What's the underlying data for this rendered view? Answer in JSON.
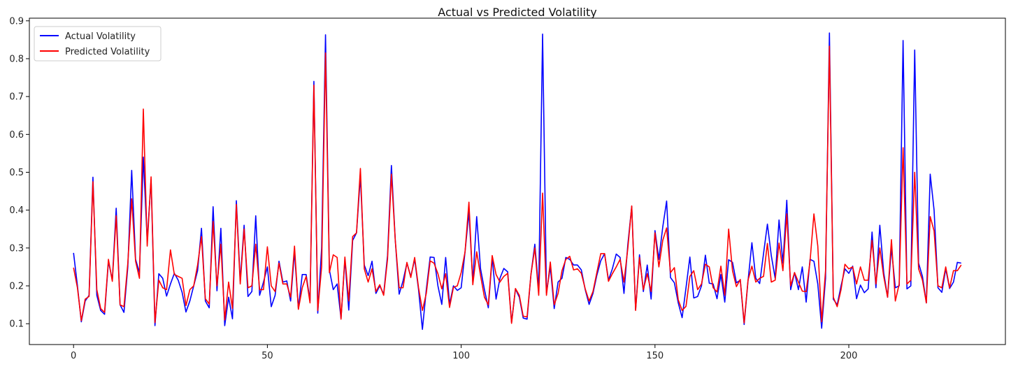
{
  "chart_data": {
    "type": "line",
    "title": "Actual vs Predicted Volatility",
    "xlabel": "",
    "ylabel": "",
    "xlim": [
      -11.4,
      240.4
    ],
    "ylim": [
      0.045,
      0.907
    ],
    "x_ticks": [
      0,
      50,
      100,
      150,
      200
    ],
    "y_ticks": [
      0.1,
      0.2,
      0.3,
      0.4,
      0.5,
      0.6,
      0.7,
      0.8,
      0.9
    ],
    "legend_position": "top-left",
    "grid": false,
    "series": [
      {
        "name": "Actual Volatility",
        "color": "#0000ff",
        "values": [
          0.287,
          0.2,
          0.105,
          0.16,
          0.175,
          0.487,
          0.175,
          0.135,
          0.125,
          0.265,
          0.215,
          0.405,
          0.15,
          0.13,
          0.25,
          0.505,
          0.27,
          0.235,
          0.54,
          0.32,
          0.48,
          0.095,
          0.232,
          0.22,
          0.173,
          0.205,
          0.233,
          0.215,
          0.183,
          0.131,
          0.16,
          0.2,
          0.24,
          0.352,
          0.16,
          0.142,
          0.409,
          0.187,
          0.352,
          0.095,
          0.17,
          0.113,
          0.425,
          0.213,
          0.36,
          0.172,
          0.185,
          0.385,
          0.175,
          0.21,
          0.25,
          0.145,
          0.175,
          0.265,
          0.21,
          0.213,
          0.16,
          0.29,
          0.14,
          0.23,
          0.23,
          0.16,
          0.74,
          0.128,
          0.3,
          0.863,
          0.242,
          0.19,
          0.205,
          0.114,
          0.27,
          0.136,
          0.32,
          0.34,
          0.49,
          0.255,
          0.227,
          0.265,
          0.18,
          0.2,
          0.178,
          0.28,
          0.518,
          0.32,
          0.178,
          0.213,
          0.26,
          0.225,
          0.27,
          0.19,
          0.085,
          0.19,
          0.276,
          0.275,
          0.2,
          0.151,
          0.275,
          0.152,
          0.2,
          0.188,
          0.195,
          0.29,
          0.395,
          0.21,
          0.383,
          0.245,
          0.19,
          0.142,
          0.275,
          0.165,
          0.22,
          0.246,
          0.237,
          0.103,
          0.192,
          0.17,
          0.115,
          0.112,
          0.23,
          0.31,
          0.19,
          0.865,
          0.182,
          0.25,
          0.14,
          0.21,
          0.22,
          0.275,
          0.27,
          0.255,
          0.255,
          0.242,
          0.19,
          0.151,
          0.18,
          0.228,
          0.266,
          0.285,
          0.215,
          0.245,
          0.284,
          0.275,
          0.18,
          0.31,
          0.41,
          0.137,
          0.282,
          0.185,
          0.255,
          0.165,
          0.346,
          0.27,
          0.355,
          0.424,
          0.222,
          0.208,
          0.155,
          0.116,
          0.195,
          0.276,
          0.168,
          0.172,
          0.2,
          0.281,
          0.207,
          0.205,
          0.166,
          0.23,
          0.157,
          0.269,
          0.262,
          0.208,
          0.215,
          0.098,
          0.213,
          0.314,
          0.22,
          0.206,
          0.285,
          0.363,
          0.28,
          0.22,
          0.374,
          0.26,
          0.426,
          0.19,
          0.235,
          0.19,
          0.25,
          0.157,
          0.27,
          0.265,
          0.205,
          0.088,
          0.22,
          0.868,
          0.165,
          0.15,
          0.2,
          0.245,
          0.233,
          0.252,
          0.166,
          0.202,
          0.182,
          0.192,
          0.342,
          0.195,
          0.36,
          0.235,
          0.17,
          0.3,
          0.195,
          0.2,
          0.848,
          0.192,
          0.2,
          0.823,
          0.26,
          0.225,
          0.155,
          0.495,
          0.4,
          0.195,
          0.183,
          0.245,
          0.193,
          0.21,
          0.262,
          0.26
        ]
      },
      {
        "name": "Predicted Volatility",
        "color": "#ff0000",
        "values": [
          0.248,
          0.195,
          0.108,
          0.165,
          0.172,
          0.475,
          0.19,
          0.14,
          0.13,
          0.27,
          0.212,
          0.385,
          0.15,
          0.145,
          0.26,
          0.43,
          0.265,
          0.22,
          0.667,
          0.305,
          0.488,
          0.103,
          0.215,
          0.195,
          0.19,
          0.295,
          0.23,
          0.225,
          0.22,
          0.148,
          0.19,
          0.2,
          0.255,
          0.33,
          0.166,
          0.152,
          0.37,
          0.2,
          0.31,
          0.11,
          0.21,
          0.14,
          0.415,
          0.205,
          0.35,
          0.195,
          0.2,
          0.31,
          0.19,
          0.19,
          0.303,
          0.2,
          0.185,
          0.26,
          0.205,
          0.205,
          0.17,
          0.305,
          0.138,
          0.195,
          0.225,
          0.155,
          0.73,
          0.135,
          0.25,
          0.815,
          0.235,
          0.282,
          0.275,
          0.112,
          0.276,
          0.16,
          0.33,
          0.34,
          0.51,
          0.245,
          0.21,
          0.245,
          0.185,
          0.203,
          0.175,
          0.27,
          0.495,
          0.32,
          0.195,
          0.195,
          0.262,
          0.222,
          0.275,
          0.195,
          0.135,
          0.18,
          0.266,
          0.26,
          0.232,
          0.192,
          0.232,
          0.143,
          0.196,
          0.2,
          0.235,
          0.29,
          0.421,
          0.203,
          0.29,
          0.227,
          0.17,
          0.15,
          0.28,
          0.23,
          0.21,
          0.225,
          0.233,
          0.101,
          0.193,
          0.175,
          0.12,
          0.118,
          0.23,
          0.3,
          0.175,
          0.445,
          0.175,
          0.263,
          0.15,
          0.18,
          0.24,
          0.27,
          0.278,
          0.242,
          0.245,
          0.233,
          0.192,
          0.16,
          0.185,
          0.235,
          0.285,
          0.285,
          0.212,
          0.232,
          0.25,
          0.27,
          0.21,
          0.3,
          0.411,
          0.135,
          0.275,
          0.19,
          0.232,
          0.185,
          0.34,
          0.25,
          0.32,
          0.353,
          0.235,
          0.248,
          0.163,
          0.135,
          0.146,
          0.225,
          0.24,
          0.19,
          0.205,
          0.257,
          0.25,
          0.195,
          0.184,
          0.252,
          0.175,
          0.35,
          0.24,
          0.198,
          0.217,
          0.102,
          0.215,
          0.252,
          0.21,
          0.22,
          0.225,
          0.312,
          0.21,
          0.215,
          0.313,
          0.24,
          0.39,
          0.2,
          0.235,
          0.21,
          0.186,
          0.185,
          0.265,
          0.39,
          0.305,
          0.105,
          0.24,
          0.833,
          0.17,
          0.145,
          0.19,
          0.257,
          0.245,
          0.25,
          0.205,
          0.25,
          0.215,
          0.215,
          0.32,
          0.205,
          0.3,
          0.225,
          0.17,
          0.322,
          0.16,
          0.205,
          0.565,
          0.205,
          0.215,
          0.5,
          0.245,
          0.215,
          0.155,
          0.383,
          0.345,
          0.2,
          0.195,
          0.25,
          0.195,
          0.24,
          0.24,
          0.255
        ]
      }
    ]
  }
}
